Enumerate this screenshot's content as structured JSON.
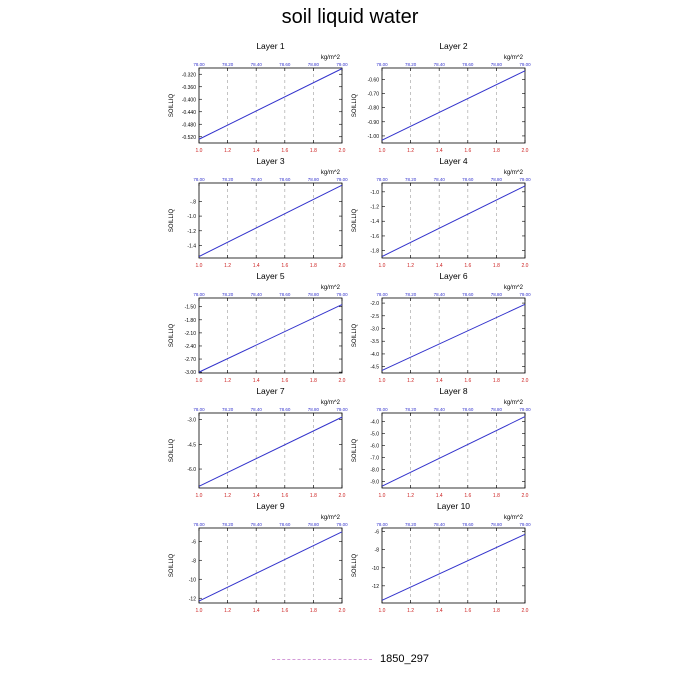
{
  "title": "soil liquid water",
  "legend": {
    "label": "1850_297",
    "color": "#d49bd9",
    "style": "dashed"
  },
  "line_color": "#3333cc",
  "bottom_tick_color": "#cc2222",
  "top_tick_color": "#3333cc",
  "chart_data": [
    {
      "type": "line",
      "title": "Layer 1",
      "ylabel": "SOILLIQ",
      "units": "kg/m^2",
      "x": [
        1.0,
        2.0
      ],
      "y": [
        -0.528,
        -0.302
      ],
      "xlim": [
        1.0,
        2.0
      ],
      "ylim": [
        -0.54,
        -0.3
      ],
      "xticks": [
        "1.0",
        "1.2",
        "1.4",
        "1.6",
        "1.8",
        "2.0"
      ],
      "top_ticks": [
        "78.00",
        "78.20",
        "78.40",
        "78.60",
        "78.80",
        "79.00"
      ],
      "yticks": [
        {
          "v": -0.52,
          "label": "-0.520"
        },
        {
          "v": -0.48,
          "label": "-0.480"
        },
        {
          "v": -0.44,
          "label": "-0.440"
        },
        {
          "v": -0.4,
          "label": "-0.400"
        },
        {
          "v": -0.36,
          "label": "-0.360"
        },
        {
          "v": -0.32,
          "label": "-0.320"
        }
      ]
    },
    {
      "type": "line",
      "title": "Layer 2",
      "ylabel": "SOILLIQ",
      "units": "kg/m^2",
      "x": [
        1.0,
        2.0
      ],
      "y": [
        -1.03,
        -0.54
      ],
      "xlim": [
        1.0,
        2.0
      ],
      "ylim": [
        -1.05,
        -0.52
      ],
      "xticks": [
        "1.0",
        "1.2",
        "1.4",
        "1.6",
        "1.8",
        "2.0"
      ],
      "top_ticks": [
        "78.00",
        "78.20",
        "78.40",
        "78.60",
        "78.80",
        "79.00"
      ],
      "yticks": [
        {
          "v": -1.0,
          "label": "-1.00"
        },
        {
          "v": -0.9,
          "label": "-0.90"
        },
        {
          "v": -0.8,
          "label": "-0.80"
        },
        {
          "v": -0.7,
          "label": "-0.70"
        },
        {
          "v": -0.6,
          "label": "-0.60"
        }
      ]
    },
    {
      "type": "line",
      "title": "Layer 3",
      "ylabel": "SOILLIQ",
      "units": "kg/m^2",
      "x": [
        1.0,
        2.0
      ],
      "y": [
        -1.55,
        -0.58
      ],
      "xlim": [
        1.0,
        2.0
      ],
      "ylim": [
        -1.57,
        -0.55
      ],
      "xticks": [
        "1.0",
        "1.2",
        "1.4",
        "1.6",
        "1.8",
        "2.0"
      ],
      "top_ticks": [
        "78.00",
        "78.20",
        "78.40",
        "78.60",
        "78.80",
        "79.00"
      ],
      "yticks": [
        {
          "v": -1.4,
          "label": "-1.4"
        },
        {
          "v": -1.2,
          "label": "-1.2"
        },
        {
          "v": -1.0,
          "label": "-1.0"
        },
        {
          "v": -0.8,
          "label": "-.8"
        }
      ]
    },
    {
      "type": "line",
      "title": "Layer 4",
      "ylabel": "SOILLIQ",
      "units": "kg/m^2",
      "x": [
        1.0,
        2.0
      ],
      "y": [
        -1.88,
        -0.92
      ],
      "xlim": [
        1.0,
        2.0
      ],
      "ylim": [
        -1.9,
        -0.88
      ],
      "xticks": [
        "1.0",
        "1.2",
        "1.4",
        "1.6",
        "1.8",
        "2.0"
      ],
      "top_ticks": [
        "78.00",
        "78.20",
        "78.40",
        "78.60",
        "78.80",
        "79.00"
      ],
      "yticks": [
        {
          "v": -1.8,
          "label": "-1.8"
        },
        {
          "v": -1.6,
          "label": "-1.6"
        },
        {
          "v": -1.4,
          "label": "-1.4"
        },
        {
          "v": -1.2,
          "label": "-1.2"
        },
        {
          "v": -1.0,
          "label": "-1.0"
        }
      ]
    },
    {
      "type": "line",
      "title": "Layer 5",
      "ylabel": "SOILLIQ",
      "units": "kg/m^2",
      "x": [
        1.0,
        2.0
      ],
      "y": [
        -3.0,
        -1.45
      ],
      "xlim": [
        1.0,
        2.0
      ],
      "ylim": [
        -3.02,
        -1.3
      ],
      "xticks": [
        "1.0",
        "1.2",
        "1.4",
        "1.6",
        "1.8",
        "2.0"
      ],
      "top_ticks": [
        "78.00",
        "78.20",
        "78.40",
        "78.60",
        "78.80",
        "79.00"
      ],
      "yticks": [
        {
          "v": -3.0,
          "label": "-3.00"
        },
        {
          "v": -2.7,
          "label": "-2.70"
        },
        {
          "v": -2.4,
          "label": "-2.40"
        },
        {
          "v": -2.1,
          "label": "-2.10"
        },
        {
          "v": -1.8,
          "label": "-1.80"
        },
        {
          "v": -1.5,
          "label": "-1.50"
        }
      ]
    },
    {
      "type": "line",
      "title": "Layer 6",
      "ylabel": "SOILLIQ",
      "units": "kg/m^2",
      "x": [
        1.0,
        2.0
      ],
      "y": [
        -4.65,
        -2.05
      ],
      "xlim": [
        1.0,
        2.0
      ],
      "ylim": [
        -4.75,
        -1.8
      ],
      "xticks": [
        "1.0",
        "1.2",
        "1.4",
        "1.6",
        "1.8",
        "2.0"
      ],
      "top_ticks": [
        "78.00",
        "78.20",
        "78.40",
        "78.60",
        "78.80",
        "79.00"
      ],
      "yticks": [
        {
          "v": -4.5,
          "label": "-4.5"
        },
        {
          "v": -4.0,
          "label": "-4.0"
        },
        {
          "v": -3.5,
          "label": "-3.5"
        },
        {
          "v": -3.0,
          "label": "-3.0"
        },
        {
          "v": -2.5,
          "label": "-2.5"
        },
        {
          "v": -2.0,
          "label": "-2.0"
        }
      ]
    },
    {
      "type": "line",
      "title": "Layer 7",
      "ylabel": "SOILLIQ",
      "units": "kg/m^2",
      "x": [
        1.0,
        2.0
      ],
      "y": [
        -7.05,
        -2.85
      ],
      "xlim": [
        1.0,
        2.0
      ],
      "ylim": [
        -7.15,
        -2.6
      ],
      "xticks": [
        "1.0",
        "1.2",
        "1.4",
        "1.6",
        "1.8",
        "2.0"
      ],
      "top_ticks": [
        "78.00",
        "78.20",
        "78.40",
        "78.60",
        "78.80",
        "79.00"
      ],
      "yticks": [
        {
          "v": -6.0,
          "label": "-6.0"
        },
        {
          "v": -4.5,
          "label": "-4.5"
        },
        {
          "v": -3.0,
          "label": "-3.0"
        }
      ]
    },
    {
      "type": "line",
      "title": "Layer 8",
      "ylabel": "SOILLIQ",
      "units": "kg/m^2",
      "x": [
        1.0,
        2.0
      ],
      "y": [
        -9.4,
        -3.6
      ],
      "xlim": [
        1.0,
        2.0
      ],
      "ylim": [
        -9.55,
        -3.3
      ],
      "xticks": [
        "1.0",
        "1.2",
        "1.4",
        "1.6",
        "1.8",
        "2.0"
      ],
      "top_ticks": [
        "78.00",
        "78.20",
        "78.40",
        "78.60",
        "78.80",
        "79.00"
      ],
      "yticks": [
        {
          "v": -9.0,
          "label": "-9.0"
        },
        {
          "v": -8.0,
          "label": "-8.0"
        },
        {
          "v": -7.0,
          "label": "-7.0"
        },
        {
          "v": -6.0,
          "label": "-6.0"
        },
        {
          "v": -5.0,
          "label": "-5.0"
        },
        {
          "v": -4.0,
          "label": "-4.0"
        }
      ]
    },
    {
      "type": "line",
      "title": "Layer 9",
      "ylabel": "SOILLIQ",
      "units": "kg/m^2",
      "x": [
        1.0,
        2.0
      ],
      "y": [
        -12.3,
        -5.0
      ],
      "xlim": [
        1.0,
        2.0
      ],
      "ylim": [
        -12.5,
        -4.6
      ],
      "xticks": [
        "1.0",
        "1.2",
        "1.4",
        "1.6",
        "1.8",
        "2.0"
      ],
      "top_ticks": [
        "78.00",
        "78.20",
        "78.40",
        "78.60",
        "78.80",
        "79.00"
      ],
      "yticks": [
        {
          "v": -12,
          "label": "-12"
        },
        {
          "v": -10,
          "label": "-10"
        },
        {
          "v": -8,
          "label": "-8"
        },
        {
          "v": -6,
          "label": "-6"
        }
      ]
    },
    {
      "type": "line",
      "title": "Layer 10",
      "ylabel": "SOILLIQ",
      "units": "kg/m^2",
      "x": [
        1.0,
        2.0
      ],
      "y": [
        -13.6,
        -6.3
      ],
      "xlim": [
        1.0,
        2.0
      ],
      "ylim": [
        -13.9,
        -5.6
      ],
      "xticks": [
        "1.0",
        "1.2",
        "1.4",
        "1.6",
        "1.8",
        "2.0"
      ],
      "top_ticks": [
        "78.00",
        "78.20",
        "78.40",
        "78.60",
        "78.80",
        "79.00"
      ],
      "yticks": [
        {
          "v": -12,
          "label": "-12"
        },
        {
          "v": -10,
          "label": "-10"
        },
        {
          "v": -8,
          "label": "-8"
        },
        {
          "v": -6,
          "label": "-6"
        }
      ]
    }
  ]
}
